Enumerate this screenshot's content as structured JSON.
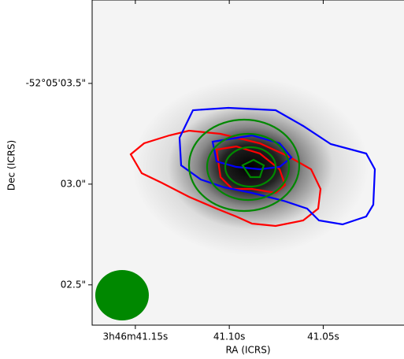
{
  "chart_data": {
    "type": "image",
    "xlabel": "RA (ICRS)",
    "ylabel": "Dec (ICRS)",
    "xlim": [
      41.173,
      41.007
    ],
    "ylim": [
      2.3,
      3.914
    ],
    "xticks": [
      {
        "value": 41.15,
        "label": "3h46m41.15s"
      },
      {
        "value": 41.1,
        "label": "41.10s"
      },
      {
        "value": 41.05,
        "label": "41.05s"
      }
    ],
    "yticks": [
      {
        "value": 3.5,
        "label": "-52°05'03.5\""
      },
      {
        "value": 3.0,
        "label": "03.0\""
      },
      {
        "value": 2.5,
        "label": "02.5\""
      }
    ]
  }
}
